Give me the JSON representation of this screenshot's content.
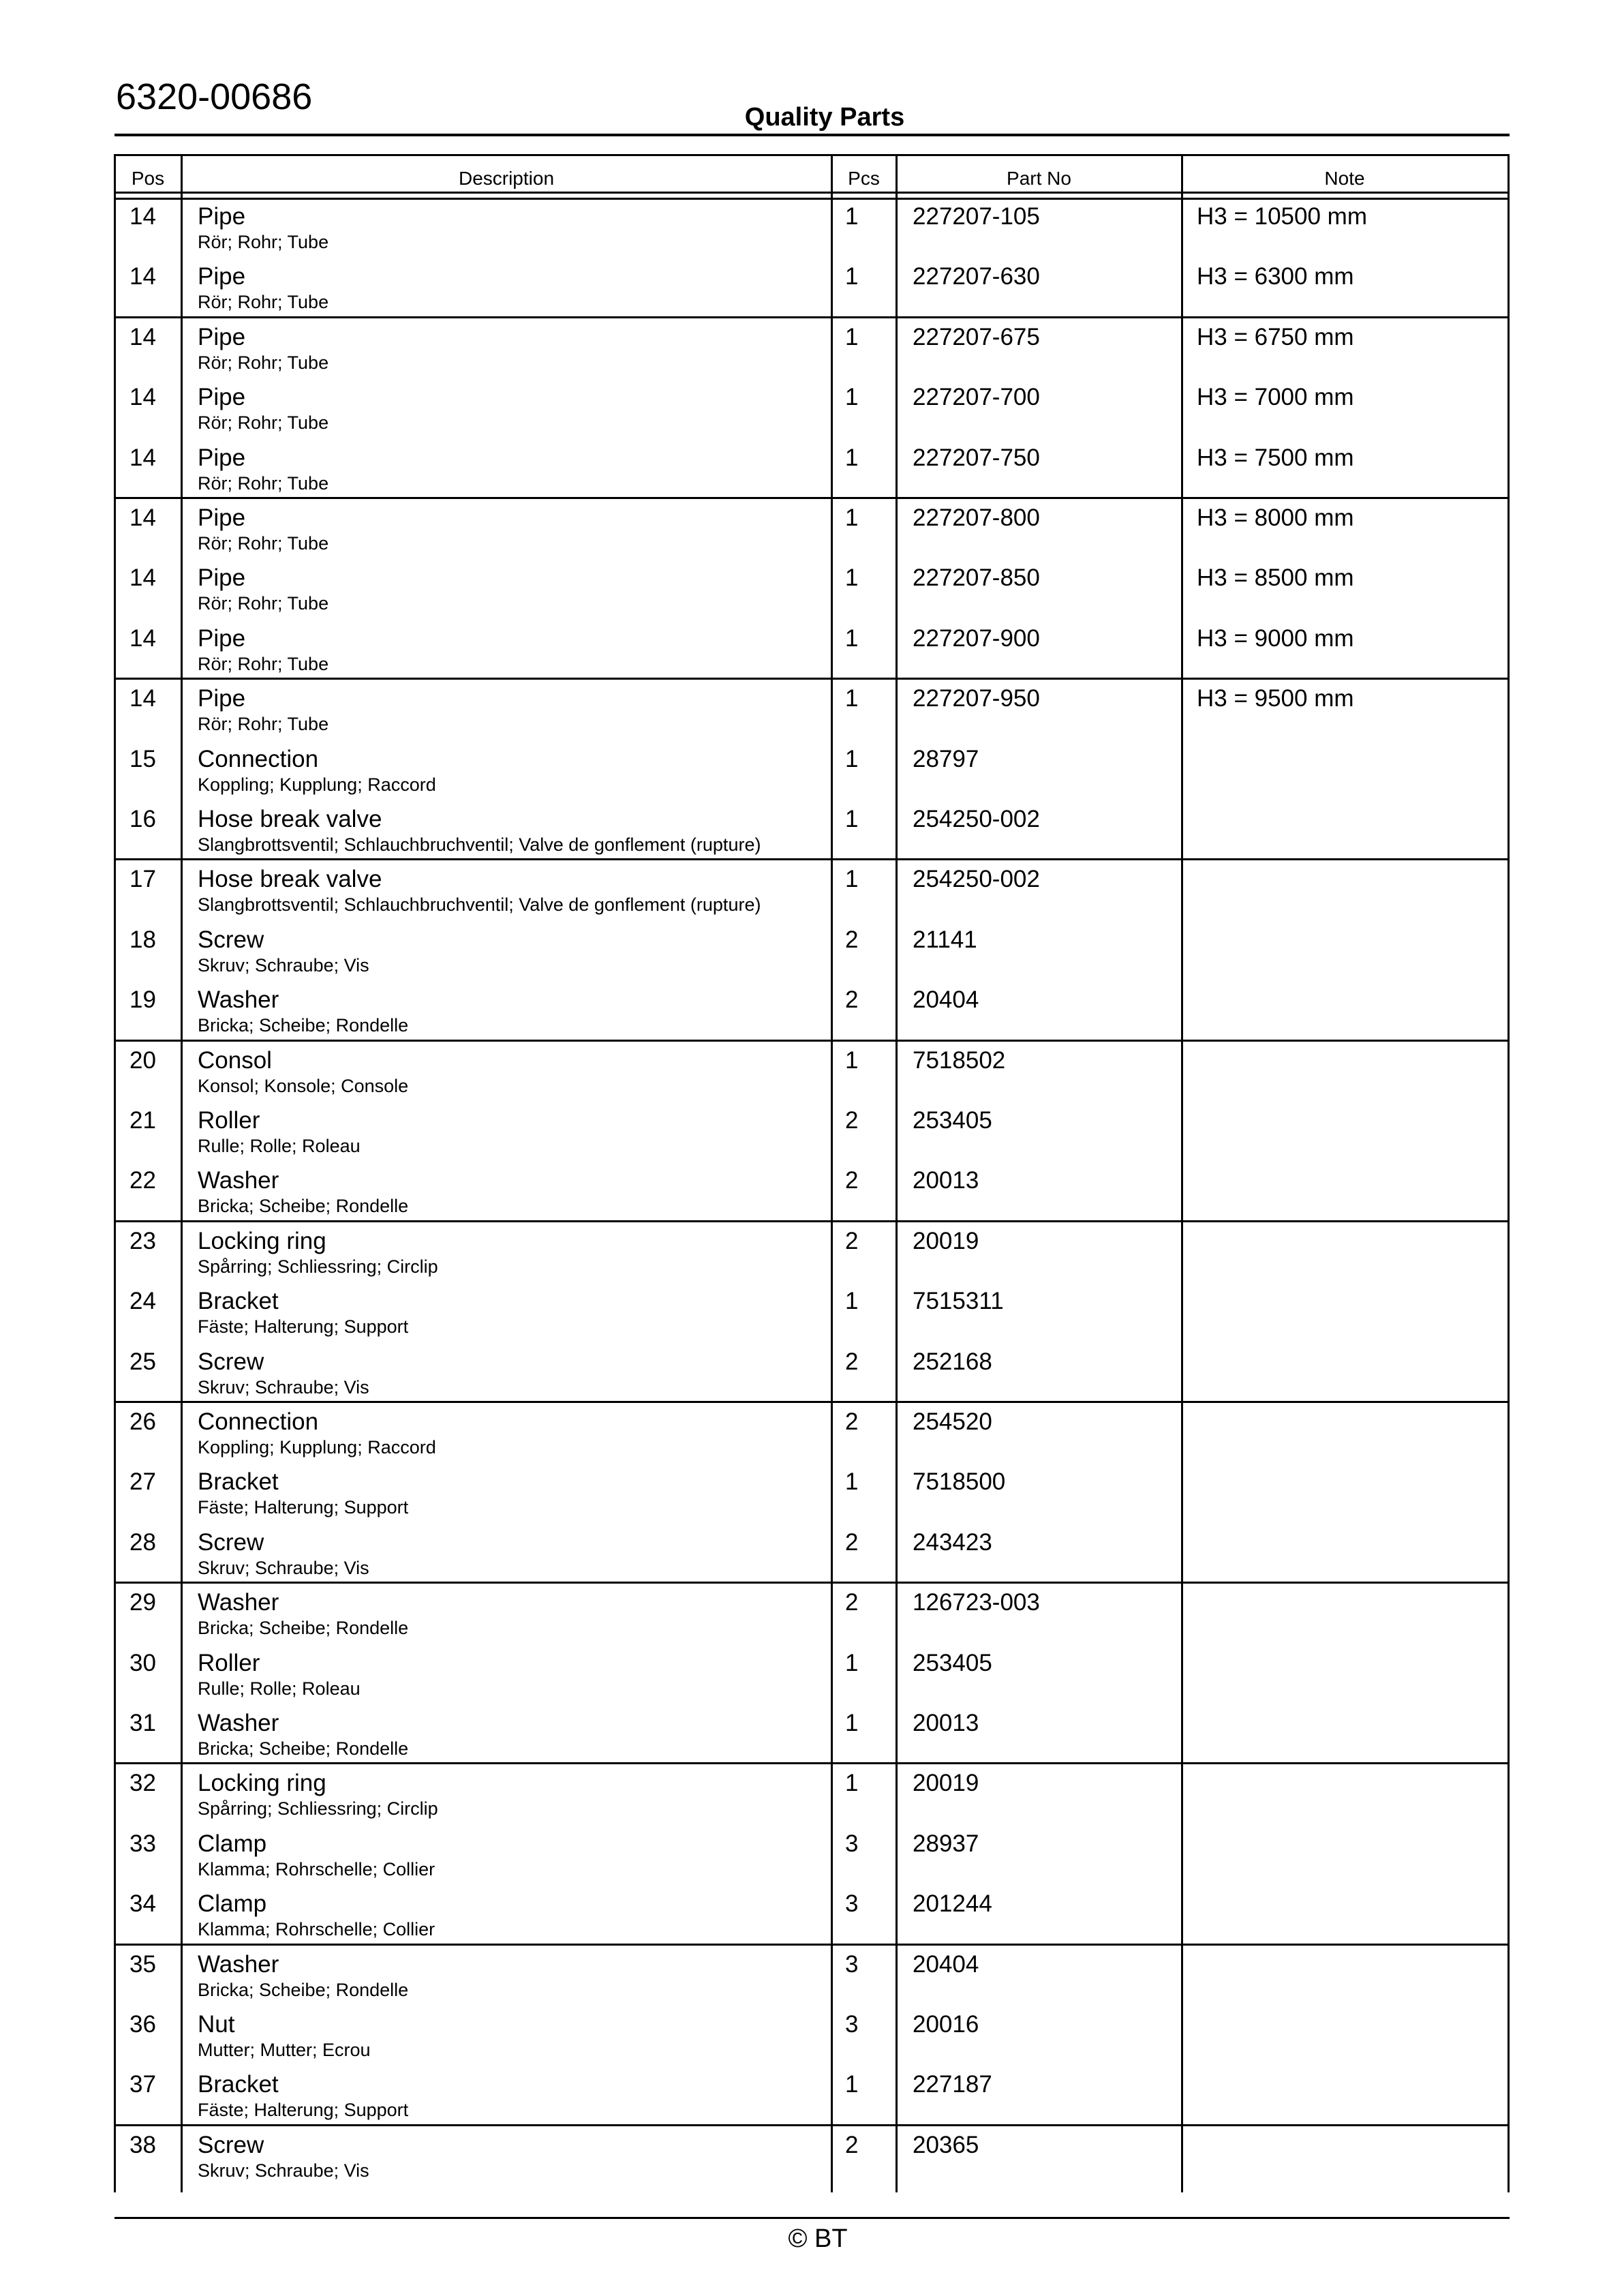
{
  "header": {
    "doc_number": "6320-00686",
    "title": "Quality Parts"
  },
  "columns": {
    "pos": "Pos",
    "description": "Description",
    "pcs": "Pcs",
    "part_no": "Part No",
    "note": "Note"
  },
  "groups": [
    {
      "items": [
        {
          "pos": "14",
          "name": "Pipe",
          "sub": "Rör; Rohr; Tube",
          "pcs": "1",
          "part": "227207-105",
          "note": "H3 = 10500 mm"
        },
        {
          "pos": "14",
          "name": "Pipe",
          "sub": "Rör; Rohr; Tube",
          "pcs": "1",
          "part": "227207-630",
          "note": "H3 = 6300 mm"
        }
      ]
    },
    {
      "items": [
        {
          "pos": "14",
          "name": "Pipe",
          "sub": "Rör; Rohr; Tube",
          "pcs": "1",
          "part": "227207-675",
          "note": "H3 = 6750 mm"
        },
        {
          "pos": "14",
          "name": "Pipe",
          "sub": "Rör; Rohr; Tube",
          "pcs": "1",
          "part": "227207-700",
          "note": "H3 = 7000 mm"
        },
        {
          "pos": "14",
          "name": "Pipe",
          "sub": "Rör; Rohr; Tube",
          "pcs": "1",
          "part": "227207-750",
          "note": "H3 = 7500 mm"
        }
      ]
    },
    {
      "items": [
        {
          "pos": "14",
          "name": "Pipe",
          "sub": "Rör; Rohr; Tube",
          "pcs": "1",
          "part": "227207-800",
          "note": "H3 = 8000 mm"
        },
        {
          "pos": "14",
          "name": "Pipe",
          "sub": "Rör; Rohr; Tube",
          "pcs": "1",
          "part": "227207-850",
          "note": "H3 = 8500 mm"
        },
        {
          "pos": "14",
          "name": "Pipe",
          "sub": "Rör; Rohr; Tube",
          "pcs": "1",
          "part": "227207-900",
          "note": "H3 = 9000 mm"
        }
      ]
    },
    {
      "items": [
        {
          "pos": "14",
          "name": "Pipe",
          "sub": "Rör; Rohr; Tube",
          "pcs": "1",
          "part": "227207-950",
          "note": "H3 = 9500 mm"
        },
        {
          "pos": "15",
          "name": "Connection",
          "sub": "Koppling; Kupplung; Raccord",
          "pcs": "1",
          "part": "28797",
          "note": ""
        },
        {
          "pos": "16",
          "name": "Hose break valve",
          "sub": "Slangbrottsventil; Schlauchbruchventil; Valve de gonflement (rupture)",
          "pcs": "1",
          "part": "254250-002",
          "note": ""
        }
      ]
    },
    {
      "items": [
        {
          "pos": "17",
          "name": "Hose break valve",
          "sub": "Slangbrottsventil; Schlauchbruchventil; Valve de gonflement (rupture)",
          "pcs": "1",
          "part": "254250-002",
          "note": ""
        },
        {
          "pos": "18",
          "name": "Screw",
          "sub": "Skruv; Schraube; Vis",
          "pcs": "2",
          "part": "21141",
          "note": ""
        },
        {
          "pos": "19",
          "name": "Washer",
          "sub": "Bricka; Scheibe; Rondelle",
          "pcs": "2",
          "part": "20404",
          "note": ""
        }
      ]
    },
    {
      "items": [
        {
          "pos": "20",
          "name": "Consol",
          "sub": "Konsol; Konsole; Console",
          "pcs": "1",
          "part": "7518502",
          "note": ""
        },
        {
          "pos": "21",
          "name": "Roller",
          "sub": "Rulle; Rolle; Roleau",
          "pcs": "2",
          "part": "253405",
          "note": ""
        },
        {
          "pos": "22",
          "name": "Washer",
          "sub": "Bricka; Scheibe; Rondelle",
          "pcs": "2",
          "part": "20013",
          "note": ""
        }
      ]
    },
    {
      "items": [
        {
          "pos": "23",
          "name": "Locking ring",
          "sub": "Spårring; Schliessring; Circlip",
          "pcs": "2",
          "part": "20019",
          "note": ""
        },
        {
          "pos": "24",
          "name": "Bracket",
          "sub": "Fäste; Halterung; Support",
          "pcs": "1",
          "part": "7515311",
          "note": ""
        },
        {
          "pos": "25",
          "name": "Screw",
          "sub": "Skruv; Schraube; Vis",
          "pcs": "2",
          "part": "252168",
          "note": ""
        }
      ]
    },
    {
      "items": [
        {
          "pos": "26",
          "name": "Connection",
          "sub": "Koppling; Kupplung; Raccord",
          "pcs": "2",
          "part": "254520",
          "note": ""
        },
        {
          "pos": "27",
          "name": "Bracket",
          "sub": "Fäste; Halterung; Support",
          "pcs": "1",
          "part": "7518500",
          "note": ""
        },
        {
          "pos": "28",
          "name": "Screw",
          "sub": "Skruv; Schraube; Vis",
          "pcs": "2",
          "part": "243423",
          "note": ""
        }
      ]
    },
    {
      "items": [
        {
          "pos": "29",
          "name": "Washer",
          "sub": "Bricka; Scheibe; Rondelle",
          "pcs": "2",
          "part": "126723-003",
          "note": ""
        },
        {
          "pos": "30",
          "name": "Roller",
          "sub": "Rulle; Rolle; Roleau",
          "pcs": "1",
          "part": "253405",
          "note": ""
        },
        {
          "pos": "31",
          "name": "Washer",
          "sub": "Bricka; Scheibe; Rondelle",
          "pcs": "1",
          "part": "20013",
          "note": ""
        }
      ]
    },
    {
      "items": [
        {
          "pos": "32",
          "name": "Locking ring",
          "sub": "Spårring; Schliessring; Circlip",
          "pcs": "1",
          "part": "20019",
          "note": ""
        },
        {
          "pos": "33",
          "name": "Clamp",
          "sub": "Klamma; Rohrschelle; Collier",
          "pcs": "3",
          "part": "28937",
          "note": ""
        },
        {
          "pos": "34",
          "name": "Clamp",
          "sub": "Klamma; Rohrschelle; Collier",
          "pcs": "3",
          "part": "201244",
          "note": ""
        }
      ]
    },
    {
      "items": [
        {
          "pos": "35",
          "name": "Washer",
          "sub": "Bricka; Scheibe; Rondelle",
          "pcs": "3",
          "part": "20404",
          "note": ""
        },
        {
          "pos": "36",
          "name": "Nut",
          "sub": "Mutter; Mutter; Ecrou",
          "pcs": "3",
          "part": "20016",
          "note": ""
        },
        {
          "pos": "37",
          "name": "Bracket",
          "sub": "Fäste; Halterung; Support",
          "pcs": "1",
          "part": "227187",
          "note": ""
        }
      ]
    },
    {
      "items": [
        {
          "pos": "38",
          "name": "Screw",
          "sub": "Skruv; Schraube; Vis",
          "pcs": "2",
          "part": "20365",
          "note": ""
        }
      ]
    }
  ],
  "footer": {
    "copyright": "© BT"
  }
}
